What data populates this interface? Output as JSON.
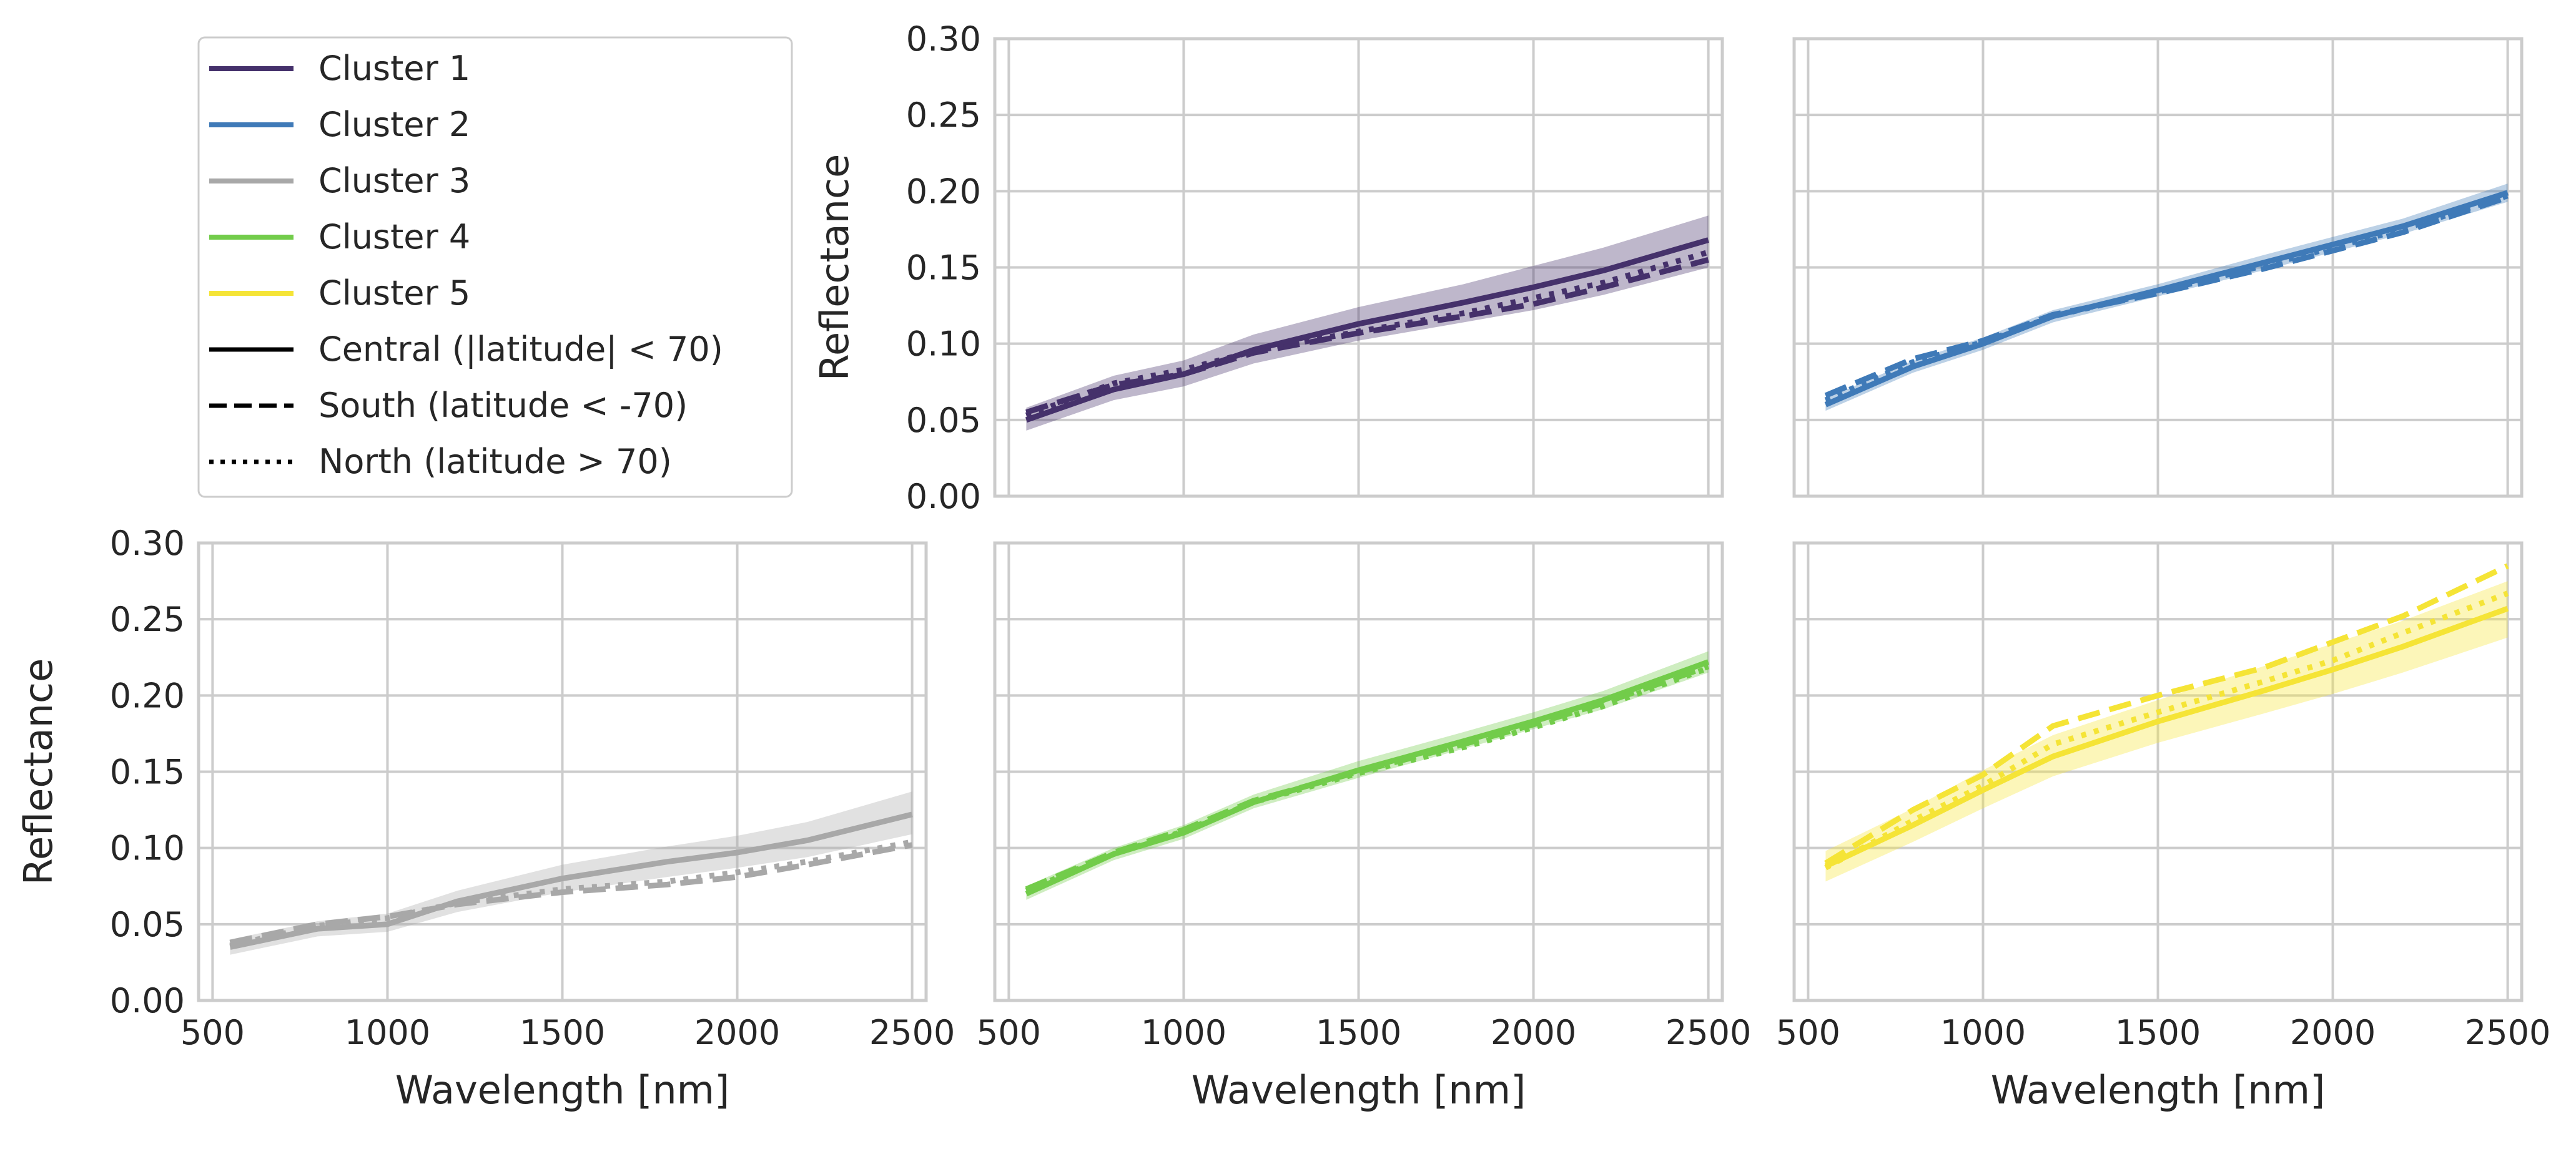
{
  "legend": {
    "clusters": [
      {
        "label": "Cluster 1",
        "color": "#45316b"
      },
      {
        "label": "Cluster 2",
        "color": "#3f7ab8"
      },
      {
        "label": "Cluster 3",
        "color": "#a8a8a8"
      },
      {
        "label": "Cluster 4",
        "color": "#72cc4a"
      },
      {
        "label": "Cluster 5",
        "color": "#f5e436"
      }
    ],
    "styles": [
      {
        "label": "Central (|latitude| < 70)",
        "dash": "solid"
      },
      {
        "label": "South (latitude < -70)",
        "dash": "dashed"
      },
      {
        "label": "North (latitude > 70)",
        "dash": "dotted"
      }
    ]
  },
  "chart_data": [
    {
      "type": "line",
      "title": "Cluster 1",
      "color": "#45316b",
      "xlabel": "",
      "ylabel": "Reflectance",
      "xlim": [
        460,
        2540
      ],
      "ylim": [
        0,
        0.3
      ],
      "xticks": [
        "500",
        "1000",
        "1500",
        "2000",
        "2500"
      ],
      "yticks": [
        "0.00",
        "0.05",
        "0.10",
        "0.15",
        "0.20",
        "0.25",
        "0.30"
      ],
      "show_xticklabels": false,
      "show_yticklabels": true,
      "x": [
        550,
        800,
        1000,
        1200,
        1500,
        1800,
        2000,
        2200,
        2500
      ],
      "series": [
        {
          "name": "Central (|latitude| < 70)",
          "dash": "solid",
          "values": [
            0.05,
            0.07,
            0.08,
            0.096,
            0.113,
            0.127,
            0.137,
            0.148,
            0.168
          ]
        },
        {
          "name": "South (latitude < -70)",
          "dash": "dashed",
          "values": [
            0.055,
            0.073,
            0.08,
            0.094,
            0.107,
            0.118,
            0.126,
            0.137,
            0.155
          ]
        },
        {
          "name": "North (latitude > 70)",
          "dash": "dotted",
          "values": [
            0.053,
            0.074,
            0.083,
            0.095,
            0.108,
            0.12,
            0.13,
            0.14,
            0.16
          ]
        }
      ],
      "band": {
        "lower": [
          0.043,
          0.063,
          0.072,
          0.087,
          0.102,
          0.114,
          0.122,
          0.132,
          0.15
        ],
        "upper": [
          0.058,
          0.079,
          0.089,
          0.106,
          0.124,
          0.139,
          0.151,
          0.163,
          0.184
        ]
      }
    },
    {
      "type": "line",
      "title": "Cluster 2",
      "color": "#3f7ab8",
      "xlabel": "",
      "ylabel": "",
      "xlim": [
        460,
        2540
      ],
      "ylim": [
        0,
        0.3
      ],
      "xticks": [
        "500",
        "1000",
        "1500",
        "2000",
        "2500"
      ],
      "yticks": [
        "0.00",
        "0.05",
        "0.10",
        "0.15",
        "0.20",
        "0.25",
        "0.30"
      ],
      "show_xticklabels": false,
      "show_yticklabels": false,
      "x": [
        550,
        800,
        1000,
        1200,
        1500,
        1800,
        2000,
        2200,
        2500
      ],
      "series": [
        {
          "name": "Central (|latitude| < 70)",
          "dash": "solid",
          "values": [
            0.06,
            0.085,
            0.1,
            0.118,
            0.135,
            0.153,
            0.165,
            0.177,
            0.199
          ]
        },
        {
          "name": "South (latitude < -70)",
          "dash": "dashed",
          "values": [
            0.066,
            0.09,
            0.102,
            0.119,
            0.133,
            0.149,
            0.161,
            0.173,
            0.196
          ]
        },
        {
          "name": "North (latitude > 70)",
          "dash": "dotted",
          "values": [
            0.063,
            0.088,
            0.101,
            0.118,
            0.134,
            0.151,
            0.163,
            0.175,
            0.197
          ]
        }
      ],
      "band": {
        "lower": [
          0.056,
          0.081,
          0.096,
          0.114,
          0.131,
          0.148,
          0.16,
          0.172,
          0.193
        ],
        "upper": [
          0.064,
          0.089,
          0.104,
          0.122,
          0.139,
          0.158,
          0.17,
          0.182,
          0.205
        ]
      }
    },
    {
      "type": "line",
      "title": "Cluster 3",
      "color": "#a8a8a8",
      "xlabel": "Wavelength [nm]",
      "ylabel": "Reflectance",
      "xlim": [
        460,
        2540
      ],
      "ylim": [
        0,
        0.3
      ],
      "xticks": [
        "500",
        "1000",
        "1500",
        "2000",
        "2500"
      ],
      "yticks": [
        "0.00",
        "0.05",
        "0.10",
        "0.15",
        "0.20",
        "0.25",
        "0.30"
      ],
      "show_xticklabels": true,
      "show_yticklabels": true,
      "x": [
        550,
        800,
        1000,
        1200,
        1500,
        1800,
        2000,
        2200,
        2500
      ],
      "series": [
        {
          "name": "Central (|latitude| < 70)",
          "dash": "solid",
          "values": [
            0.035,
            0.047,
            0.05,
            0.065,
            0.08,
            0.091,
            0.097,
            0.105,
            0.122
          ]
        },
        {
          "name": "South (latitude < -70)",
          "dash": "dashed",
          "values": [
            0.038,
            0.05,
            0.055,
            0.063,
            0.071,
            0.076,
            0.081,
            0.089,
            0.102
          ]
        },
        {
          "name": "North (latitude > 70)",
          "dash": "dotted",
          "values": [
            0.036,
            0.049,
            0.054,
            0.064,
            0.073,
            0.078,
            0.084,
            0.091,
            0.104
          ]
        }
      ],
      "band": {
        "lower": [
          0.03,
          0.042,
          0.045,
          0.058,
          0.071,
          0.081,
          0.087,
          0.094,
          0.109
        ],
        "upper": [
          0.04,
          0.052,
          0.057,
          0.072,
          0.089,
          0.101,
          0.108,
          0.117,
          0.137
        ]
      }
    },
    {
      "type": "line",
      "title": "Cluster 4",
      "color": "#72cc4a",
      "xlabel": "Wavelength [nm]",
      "ylabel": "",
      "xlim": [
        460,
        2540
      ],
      "ylim": [
        0,
        0.3
      ],
      "xticks": [
        "500",
        "1000",
        "1500",
        "2000",
        "2500"
      ],
      "yticks": [
        "0.00",
        "0.05",
        "0.10",
        "0.15",
        "0.20",
        "0.25",
        "0.30"
      ],
      "show_xticklabels": true,
      "show_yticklabels": false,
      "x": [
        550,
        800,
        1000,
        1200,
        1500,
        1800,
        2000,
        2200,
        2500
      ],
      "series": [
        {
          "name": "Central (|latitude| < 70)",
          "dash": "solid",
          "values": [
            0.07,
            0.096,
            0.11,
            0.13,
            0.151,
            0.17,
            0.183,
            0.197,
            0.222
          ]
        },
        {
          "name": "South (latitude < -70)",
          "dash": "dashed",
          "values": [
            0.073,
            0.097,
            0.112,
            0.131,
            0.15,
            0.168,
            0.181,
            0.195,
            0.219
          ]
        },
        {
          "name": "North (latitude > 70)",
          "dash": "dotted",
          "values": [
            0.072,
            0.096,
            0.111,
            0.13,
            0.149,
            0.166,
            0.179,
            0.193,
            0.218
          ]
        }
      ],
      "band": {
        "lower": [
          0.066,
          0.092,
          0.106,
          0.126,
          0.146,
          0.165,
          0.178,
          0.191,
          0.215
        ],
        "upper": [
          0.075,
          0.1,
          0.115,
          0.135,
          0.157,
          0.176,
          0.189,
          0.203,
          0.229
        ]
      }
    },
    {
      "type": "line",
      "title": "Cluster 5",
      "color": "#f5e436",
      "xlabel": "Wavelength [nm]",
      "ylabel": "",
      "xlim": [
        460,
        2540
      ],
      "ylim": [
        0,
        0.3
      ],
      "xticks": [
        "500",
        "1000",
        "1500",
        "2000",
        "2500"
      ],
      "yticks": [
        "0.00",
        "0.05",
        "0.10",
        "0.15",
        "0.20",
        "0.25",
        "0.30"
      ],
      "show_xticklabels": true,
      "show_yticklabels": false,
      "x": [
        550,
        800,
        1000,
        1200,
        1500,
        1800,
        2000,
        2200,
        2500
      ],
      "series": [
        {
          "name": "Central (|latitude| < 70)",
          "dash": "solid",
          "values": [
            0.088,
            0.115,
            0.138,
            0.16,
            0.183,
            0.203,
            0.217,
            0.232,
            0.257
          ]
        },
        {
          "name": "South (latitude < -70)",
          "dash": "dashed",
          "values": [
            0.09,
            0.125,
            0.148,
            0.18,
            0.2,
            0.218,
            0.235,
            0.252,
            0.285
          ]
        },
        {
          "name": "North (latitude > 70)",
          "dash": "dotted",
          "values": [
            0.087,
            0.118,
            0.141,
            0.168,
            0.189,
            0.209,
            0.223,
            0.241,
            0.267
          ]
        }
      ],
      "band": {
        "lower": [
          0.078,
          0.104,
          0.126,
          0.147,
          0.169,
          0.188,
          0.201,
          0.215,
          0.238
        ],
        "upper": [
          0.098,
          0.126,
          0.151,
          0.174,
          0.197,
          0.219,
          0.234,
          0.249,
          0.275
        ]
      }
    }
  ]
}
